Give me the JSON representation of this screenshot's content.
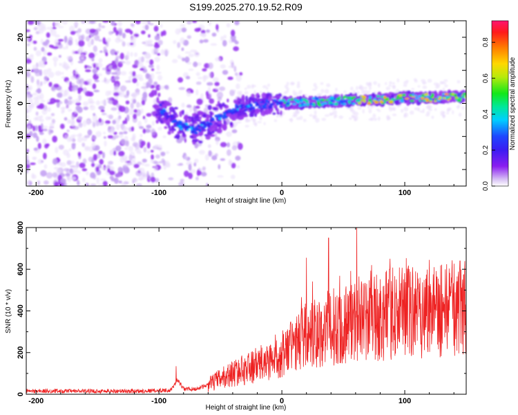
{
  "title": "S199.2025.270.19.52.R09",
  "chart_data": [
    {
      "type": "heatmap",
      "xlabel": "Height of straight line (km)",
      "ylabel": "Frequency (Hz)",
      "xlim": [
        -208,
        150
      ],
      "ylim": [
        -25,
        25
      ],
      "xticks": [
        -200,
        -100,
        0,
        100
      ],
      "yticks": [
        -20,
        -10,
        0,
        10,
        20
      ],
      "colorbar": {
        "label": "Normalized spectral amplitude",
        "range": [
          0,
          0.92
        ],
        "ticks": [
          0.0,
          0.2,
          0.4,
          0.6,
          0.8
        ]
      },
      "ridge": [
        {
          "x": -100,
          "f": -1
        },
        {
          "x": -90,
          "f": -5
        },
        {
          "x": -80,
          "f": -7
        },
        {
          "x": -70,
          "f": -8
        },
        {
          "x": -60,
          "f": -6
        },
        {
          "x": -50,
          "f": -4
        },
        {
          "x": -40,
          "f": -2
        },
        {
          "x": -30,
          "f": -1
        },
        {
          "x": -20,
          "f": -0.5
        },
        {
          "x": 0,
          "f": 0
        },
        {
          "x": 50,
          "f": 0.8
        },
        {
          "x": 100,
          "f": 1.5
        },
        {
          "x": 150,
          "f": 2
        }
      ]
    },
    {
      "type": "line",
      "xlabel": "Height of straight line (km)",
      "ylabel": "SNR (10 * v/v)",
      "xlim": [
        -208,
        150
      ],
      "ylim": [
        0,
        800
      ],
      "xticks": [
        -200,
        -100,
        0,
        100
      ],
      "yticks": [
        0,
        200,
        400,
        600,
        800
      ],
      "series": [
        {
          "name": "SNR",
          "color": "#ee2222",
          "x": [
            -208,
            -180,
            -150,
            -120,
            -100,
            -90,
            -85,
            -80,
            -70,
            -60,
            -50,
            -40,
            -30,
            -20,
            -10,
            0,
            10,
            20,
            30,
            40,
            50,
            60,
            70,
            80,
            90,
            100,
            110,
            120,
            130,
            140,
            150
          ],
          "y": [
            15,
            15,
            15,
            15,
            18,
            20,
            70,
            25,
            25,
            45,
            75,
            100,
            120,
            140,
            160,
            200,
            230,
            280,
            300,
            320,
            340,
            350,
            360,
            370,
            385,
            395,
            400,
            405,
            410,
            410,
            415
          ],
          "peaks": [
            {
              "x": -86,
              "y": 135
            },
            {
              "x": 20,
              "y": 655
            },
            {
              "x": 38,
              "y": 750
            },
            {
              "x": 61,
              "y": 800
            },
            {
              "x": 73,
              "y": 620
            },
            {
              "x": 88,
              "y": 650
            },
            {
              "x": 120,
              "y": 645
            },
            {
              "x": 145,
              "y": 640
            }
          ]
        }
      ]
    }
  ]
}
